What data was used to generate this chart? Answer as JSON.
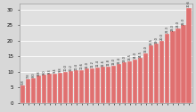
{
  "values": [
    5.8,
    7.8,
    8.0,
    8.8,
    9.0,
    9.3,
    9.4,
    9.8,
    10.0,
    10.2,
    10.4,
    10.6,
    11.0,
    11.2,
    11.4,
    11.6,
    11.8,
    12.0,
    12.4,
    13.0,
    13.5,
    14.0,
    14.5,
    16.0,
    18.5,
    19.0,
    20.0,
    22.3,
    23.0,
    24.0,
    25.0,
    30.6
  ],
  "bar_color": "#e07070",
  "bar_edge_color": "#ffffff",
  "background_color": "#d8d8d8",
  "plot_bg_color": "#e0e0e0",
  "ylim": [
    0,
    32
  ],
  "grid_color": "#ffffff",
  "label_fontsize": 2.5,
  "ytick_fontsize": 4.0,
  "yticks": [
    0,
    5,
    10,
    15,
    20,
    25,
    30
  ]
}
